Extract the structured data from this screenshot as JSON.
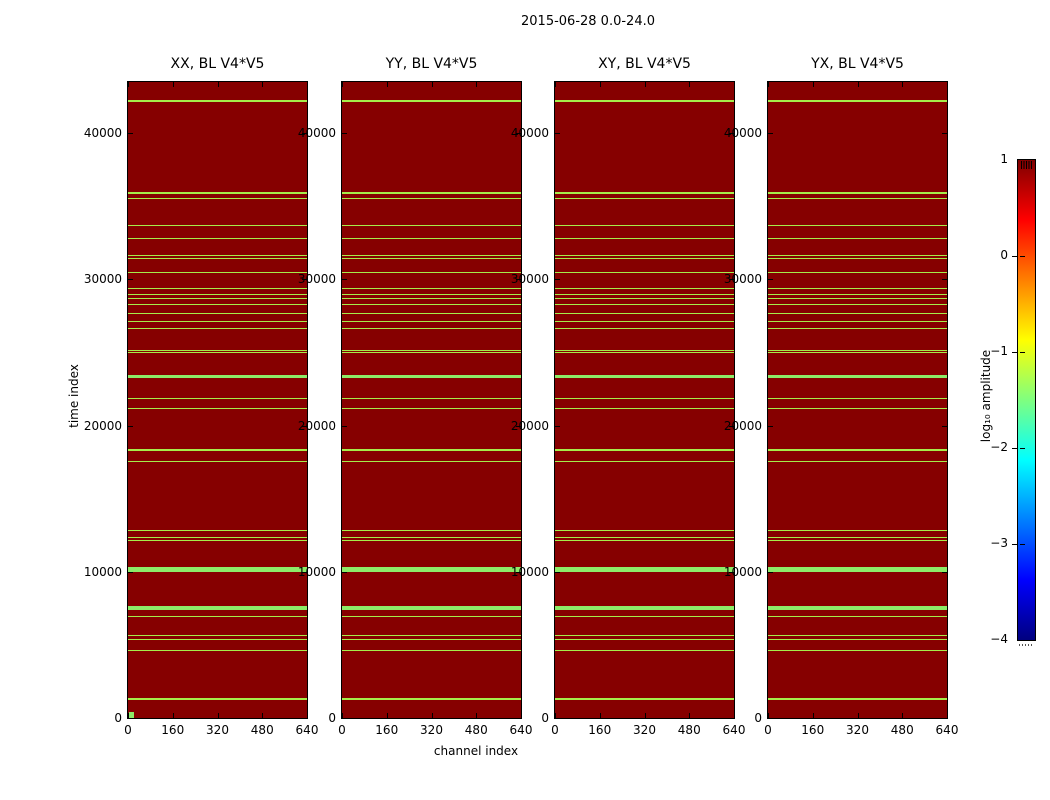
{
  "figure": {
    "suptitle": "2015-06-28 0.0-24.0",
    "background_color": "#ffffff"
  },
  "chart_data": {
    "type": "heatmap",
    "title": "2015-06-28 0.0-24.0",
    "xlabel": "channel index",
    "ylabel": "time index",
    "colormap": "jet",
    "xlim": [
      0,
      640
    ],
    "ylim": [
      0,
      43500
    ],
    "x_ticks": [
      0,
      160,
      320,
      480,
      640
    ],
    "y_ticks": [
      0,
      10000,
      20000,
      30000,
      40000
    ],
    "background_value_color": "#860000",
    "line_color": "#a6ec4a",
    "bright_line_color": "#8deb68",
    "panels": [
      {
        "title": "XX, BL V4*V5",
        "origin_marker": true
      },
      {
        "title": "YY, BL V4*V5",
        "origin_marker": false
      },
      {
        "title": "XY, BL V4*V5",
        "origin_marker": false
      },
      {
        "title": "YX, BL V4*V5",
        "origin_marker": false
      }
    ],
    "rfi_time_lines": [
      {
        "time": 42230,
        "px": 2,
        "bright": false
      },
      {
        "time": 35900,
        "px": 2,
        "bright": false
      },
      {
        "time": 35530,
        "px": 1,
        "bright": false
      },
      {
        "time": 33660,
        "px": 1,
        "bright": false
      },
      {
        "time": 32800,
        "px": 1,
        "bright": false
      },
      {
        "time": 31660,
        "px": 1,
        "bright": false
      },
      {
        "time": 31430,
        "px": 1,
        "bright": false
      },
      {
        "time": 30480,
        "px": 1,
        "bright": false
      },
      {
        "time": 29400,
        "px": 1,
        "bright": false
      },
      {
        "time": 28990,
        "px": 1,
        "bright": false
      },
      {
        "time": 28720,
        "px": 1,
        "bright": false
      },
      {
        "time": 28310,
        "px": 1,
        "bright": false
      },
      {
        "time": 27690,
        "px": 1,
        "bright": false
      },
      {
        "time": 27150,
        "px": 1,
        "bright": false
      },
      {
        "time": 26670,
        "px": 1,
        "bright": false
      },
      {
        "time": 25160,
        "px": 1,
        "bright": false
      },
      {
        "time": 24970,
        "px": 1,
        "bright": false
      },
      {
        "time": 23340,
        "px": 3,
        "bright": true
      },
      {
        "time": 21860,
        "px": 1,
        "bright": false
      },
      {
        "time": 21175,
        "px": 1,
        "bright": false
      },
      {
        "time": 18325,
        "px": 2,
        "bright": false
      },
      {
        "time": 17570,
        "px": 1,
        "bright": false
      },
      {
        "time": 12855,
        "px": 1,
        "bright": false
      },
      {
        "time": 12355,
        "px": 1,
        "bright": false
      },
      {
        "time": 12125,
        "px": 1,
        "bright": false
      },
      {
        "time": 10190,
        "px": 5,
        "bright": true
      },
      {
        "time": 7550,
        "px": 4,
        "bright": true
      },
      {
        "time": 6930,
        "px": 1,
        "bright": false
      },
      {
        "time": 5610,
        "px": 1,
        "bright": false
      },
      {
        "time": 5335,
        "px": 1,
        "bright": false
      },
      {
        "time": 4600,
        "px": 1,
        "bright": false
      },
      {
        "time": 1280,
        "px": 2,
        "bright": false
      }
    ],
    "colorbar": {
      "label": "log₁₀ amplitude",
      "vmin": -4,
      "vmax": 1,
      "tick_values": [
        1,
        0,
        -1,
        -2,
        -3,
        -4
      ],
      "tick_labels": [
        "1",
        "0",
        "−1",
        "−2",
        "−3",
        "−4"
      ],
      "gradient_stops": [
        {
          "color": "#800000",
          "pos": 0
        },
        {
          "color": "#ff0000",
          "pos": 12.5
        },
        {
          "color": "#ffff00",
          "pos": 37.5
        },
        {
          "color": "#00ffff",
          "pos": 62.5
        },
        {
          "color": "#0000ff",
          "pos": 87.5
        },
        {
          "color": "#00007f",
          "pos": 100
        }
      ]
    }
  }
}
